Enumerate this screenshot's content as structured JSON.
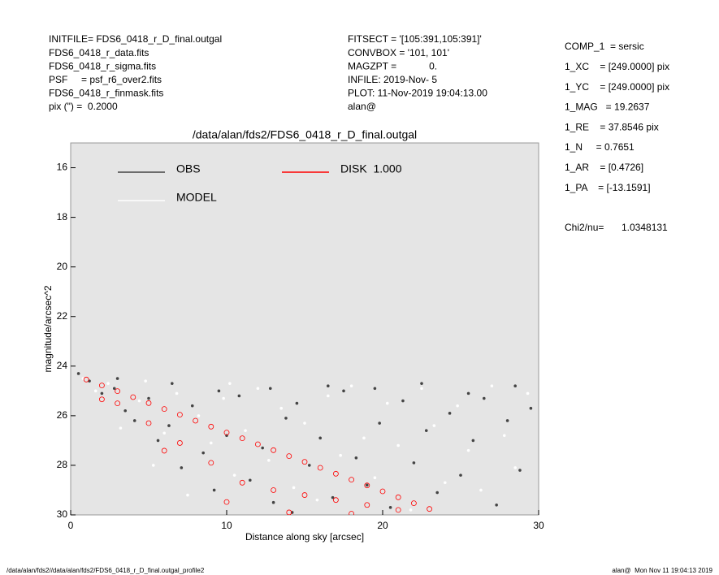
{
  "chart_data": {
    "type": "scatter",
    "title": "/data/alan/fds2/FDS6_0418_r_D_final.outgal",
    "x_label": "Distance along sky [arcsec]",
    "y_label": "magnitude/arcsec^2",
    "info_left": [
      "INITFILE= FDS6_0418_r_D_final.outgal",
      "FDS6_0418_r_data.fits",
      "FDS6_0418_r_sigma.fits",
      "PSF     = psf_r6_over2.fits",
      "FDS6_0418_r_finmask.fits",
      "pix (\") =  0.2000"
    ],
    "info_mid": [
      "FITSECT = '[105:391,105:391]'",
      "CONVBOX = '101, 101'",
      "MAGZPT =            0.",
      "INFILE: 2019-Nov- 5",
      "PLOT: 11-Nov-2019 19:04:13.00",
      "alan@"
    ],
    "info_right": [
      "COMP_1  = sersic",
      "1_XC    = [249.0000] pix",
      "1_YC    = [249.0000] pix",
      "1_MAG   = 19.2637",
      "1_RE    = 37.8546 pix",
      "1_N     = 0.7651",
      "1_AR    = [0.4726]",
      "1_PA    = [-13.1591]"
    ],
    "chi_label": "Chi2/nu=",
    "chi_value": "1.0348131",
    "footer_left": "/data/alan/fds2//data/alan/fds2/FDS6_0418_r_D_final.outgal_profile2",
    "footer_right": "alan@  Mon Nov 11 19:04:13 2019",
    "xlim": [
      0,
      30
    ],
    "ylim": [
      30,
      15
    ],
    "xticks": [
      0,
      10,
      20,
      30
    ],
    "yticks": [
      16,
      18,
      20,
      22,
      24,
      26,
      28,
      30
    ],
    "series": [
      {
        "name": "OBS",
        "color": "#444444",
        "x": [
          0.5,
          1.2,
          2.0,
          2.8,
          3.5,
          4.1,
          5.0,
          5.6,
          6.3,
          7.1,
          7.8,
          8.5,
          9.2,
          10.0,
          10.8,
          11.5,
          12.3,
          13.0,
          13.8,
          14.5,
          15.3,
          16.0,
          16.8,
          17.5,
          18.3,
          19.0,
          19.8,
          20.5,
          21.3,
          22.0,
          22.8,
          23.5,
          24.3,
          25.0,
          25.8,
          26.5,
          27.3,
          28.0,
          28.8,
          29.5,
          3.0,
          6.5,
          9.5,
          12.8,
          16.5,
          19.5,
          22.5,
          25.5,
          28.5,
          14.2
        ],
        "values": [
          24.3,
          24.6,
          25.1,
          24.9,
          25.8,
          26.2,
          25.3,
          27.0,
          26.4,
          28.1,
          25.6,
          27.5,
          29.0,
          26.8,
          25.2,
          28.6,
          27.3,
          29.5,
          26.1,
          25.5,
          28.0,
          26.9,
          29.3,
          25.0,
          27.7,
          28.8,
          26.3,
          29.7,
          25.4,
          27.9,
          26.6,
          29.1,
          25.9,
          28.4,
          27.0,
          25.3,
          29.6,
          26.2,
          28.2,
          25.7,
          24.5,
          24.7,
          25.0,
          24.9,
          24.8,
          24.9,
          24.7,
          25.1,
          24.8,
          29.9
        ]
      },
      {
        "name": "MODEL",
        "color": "#ffffff",
        "x": [
          0.8,
          1.6,
          2.4,
          3.2,
          4.4,
          5.3,
          6.0,
          6.8,
          7.5,
          8.2,
          9.0,
          9.8,
          10.5,
          11.2,
          12.0,
          12.7,
          13.5,
          14.3,
          15.0,
          15.8,
          16.5,
          17.3,
          18.0,
          18.8,
          19.5,
          20.3,
          21.0,
          21.8,
          22.5,
          23.3,
          24.0,
          24.8,
          25.5,
          26.3,
          27.0,
          27.8,
          28.5,
          29.3,
          4.8,
          10.2
        ],
        "values": [
          24.5,
          25.0,
          24.7,
          26.5,
          25.4,
          28.0,
          26.7,
          25.1,
          29.2,
          26.0,
          27.1,
          25.3,
          28.4,
          26.6,
          24.9,
          27.8,
          25.7,
          28.9,
          26.3,
          29.4,
          25.2,
          27.6,
          24.8,
          26.9,
          28.5,
          25.5,
          27.2,
          29.8,
          24.9,
          26.4,
          28.7,
          25.6,
          27.4,
          29.0,
          24.8,
          26.8,
          28.1,
          25.1,
          24.6,
          24.7
        ]
      },
      {
        "name": "DISK  1.000",
        "color": "#ff0000",
        "x": [
          1,
          2,
          3,
          4,
          5,
          6,
          7,
          8,
          9,
          10,
          11,
          12,
          13,
          14,
          15,
          16,
          17,
          18,
          19,
          20,
          21,
          22,
          23,
          3,
          5,
          7,
          9,
          11,
          13,
          15,
          17,
          19,
          21,
          2,
          6,
          10,
          14,
          18
        ],
        "values": [
          24.54,
          24.78,
          25.01,
          25.25,
          25.49,
          25.73,
          25.96,
          26.2,
          26.44,
          26.68,
          26.91,
          27.15,
          27.39,
          27.63,
          27.86,
          28.1,
          28.34,
          28.58,
          28.81,
          29.05,
          29.29,
          29.53,
          29.76,
          25.5,
          26.3,
          27.1,
          27.9,
          28.7,
          29.0,
          29.2,
          29.4,
          29.6,
          29.8,
          25.34,
          27.41,
          29.48,
          29.9,
          29.95
        ]
      }
    ]
  }
}
